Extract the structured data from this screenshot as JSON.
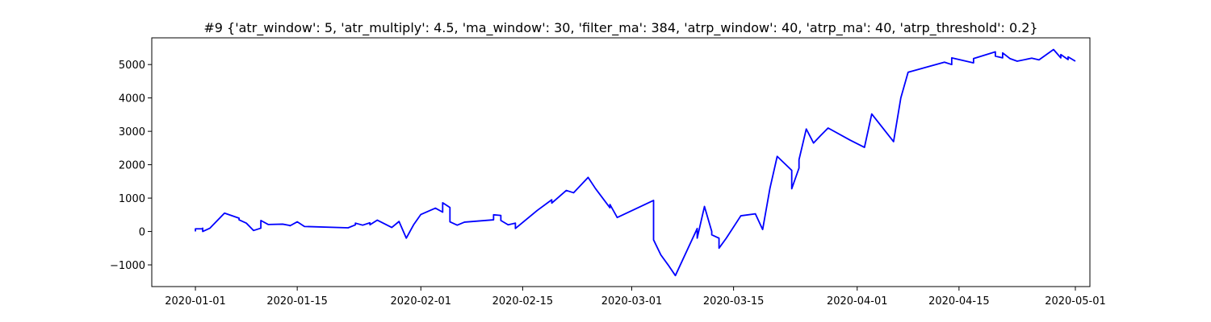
{
  "chart_data": {
    "type": "line",
    "title": "#9 {'atr_window': 5, 'atr_multiply': 4.5, 'ma_window': 30, 'filter_ma': 384, 'atrp_window': 40, 'atrp_ma': 40, 'atrp_threshold': 0.2}",
    "xlabel": "",
    "ylabel": "",
    "grid": false,
    "xlim": [
      "2019-12-26",
      "2020-05-03"
    ],
    "ylim": [
      -1650,
      5800
    ],
    "x_ticks": [
      "2020-01-01",
      "2020-01-15",
      "2020-02-01",
      "2020-02-15",
      "2020-03-01",
      "2020-03-15",
      "2020-04-01",
      "2020-04-15",
      "2020-05-01"
    ],
    "y_ticks": [
      -1000,
      0,
      1000,
      2000,
      3000,
      4000,
      5000
    ],
    "series": [
      {
        "color": "#0000ff",
        "x": [
          "2020-01-01",
          "2020-01-01",
          "2020-01-02",
          "2020-01-02",
          "2020-01-02",
          "2020-01-02",
          "2020-01-03",
          "2020-01-05",
          "2020-01-07",
          "2020-01-07",
          "2020-01-08",
          "2020-01-09",
          "2020-01-10",
          "2020-01-10",
          "2020-01-10",
          "2020-01-10",
          "2020-01-11",
          "2020-01-13",
          "2020-01-14",
          "2020-01-14",
          "2020-01-15",
          "2020-01-16",
          "2020-01-22",
          "2020-01-23",
          "2020-01-23",
          "2020-01-24",
          "2020-01-25",
          "2020-01-25",
          "2020-01-26",
          "2020-01-28",
          "2020-01-29",
          "2020-01-30",
          "2020-01-31",
          "2020-02-01",
          "2020-02-03",
          "2020-02-04",
          "2020-02-04",
          "2020-02-05",
          "2020-02-05",
          "2020-02-06",
          "2020-02-07",
          "2020-02-11",
          "2020-02-11",
          "2020-02-12",
          "2020-02-12",
          "2020-02-13",
          "2020-02-14",
          "2020-02-14",
          "2020-02-17",
          "2020-02-19",
          "2020-02-19",
          "2020-02-21",
          "2020-02-22",
          "2020-02-24",
          "2020-02-25",
          "2020-02-27",
          "2020-02-27",
          "2020-02-28",
          "2020-03-04",
          "2020-03-04",
          "2020-03-05",
          "2020-03-06",
          "2020-03-07",
          "2020-03-10",
          "2020-03-10",
          "2020-03-11",
          "2020-03-12",
          "2020-03-12",
          "2020-03-13",
          "2020-03-13",
          "2020-03-14",
          "2020-03-16",
          "2020-03-18",
          "2020-03-19",
          "2020-03-20",
          "2020-03-21",
          "2020-03-23",
          "2020-03-23",
          "2020-03-24",
          "2020-03-24",
          "2020-03-25",
          "2020-03-26",
          "2020-03-27",
          "2020-03-28",
          "2020-03-31",
          "2020-04-02",
          "2020-04-03",
          "2020-04-06",
          "2020-04-07",
          "2020-04-08",
          "2020-04-13",
          "2020-04-14",
          "2020-04-14",
          "2020-04-17",
          "2020-04-17",
          "2020-04-20",
          "2020-04-20",
          "2020-04-21",
          "2020-04-21",
          "2020-04-22",
          "2020-04-23",
          "2020-04-25",
          "2020-04-26",
          "2020-04-28",
          "2020-04-29",
          "2020-04-29",
          "2020-04-30",
          "2020-04-30",
          "2020-05-01"
        ],
        "y": [
          0,
          80,
          80,
          100,
          100,
          0,
          100,
          550,
          400,
          350,
          250,
          30,
          100,
          120,
          150,
          330,
          210,
          220,
          180,
          170,
          290,
          150,
          110,
          200,
          250,
          190,
          260,
          200,
          340,
          120,
          300,
          -200,
          200,
          510,
          700,
          580,
          860,
          720,
          290,
          190,
          280,
          350,
          500,
          480,
          330,
          200,
          250,
          90,
          630,
          950,
          850,
          1230,
          1160,
          1620,
          1290,
          710,
          810,
          420,
          930,
          -250,
          -700,
          -1000,
          -1320,
          90,
          -200,
          750,
          0,
          -100,
          -200,
          -500,
          -200,
          470,
          530,
          60,
          1290,
          2250,
          1830,
          1280,
          1900,
          2150,
          3070,
          2650,
          2880,
          3100,
          2740,
          2520,
          3520,
          2690,
          4000,
          4770,
          5070,
          5000,
          5200,
          5050,
          5180,
          5380,
          5250,
          5200,
          5350,
          5180,
          5100,
          5190,
          5140,
          5450,
          5200,
          5300,
          5150,
          5230,
          5100
        ]
      }
    ]
  }
}
